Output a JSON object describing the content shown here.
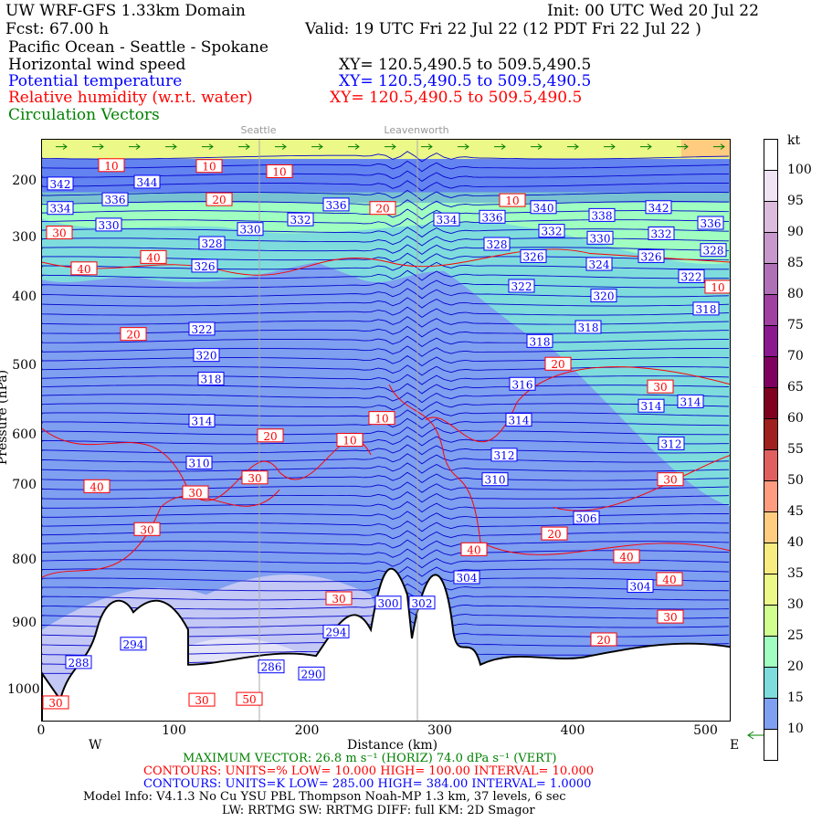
{
  "header": {
    "title": "UW WRF-GFS 1.33km Domain",
    "init": "Init: 00 UTC Wed 20 Jul 22",
    "fcst": "Fcst:   67.00 h",
    "valid": "Valid: 19 UTC Fri 22 Jul 22   (12 PDT Fri 22 Jul 22  )",
    "region": "Pacific Ocean - Seattle - Spokane",
    "fields": [
      {
        "label": "Horizontal wind speed",
        "xy": "XY= 120.5,490.5 to 509.5,490.5",
        "color": "#000000"
      },
      {
        "label": "Potential temperature",
        "xy": "XY= 120.5,490.5 to 509.5,490.5",
        "color": "#0000ff"
      },
      {
        "label": "Relative humidity (w.r.t. water)",
        "xy": "XY= 120.5,490.5 to 509.5,490.5",
        "color": "#ff0000"
      },
      {
        "label": "Circulation Vectors",
        "xy": "",
        "color": "#008000"
      }
    ]
  },
  "chart_data": {
    "type": "heatmap",
    "xlabel": "Distance (km)",
    "ylabel": "Pressure (hPa)",
    "x_ticks": [
      "0",
      "100",
      "200",
      "300",
      "400",
      "500"
    ],
    "y_ticks": [
      "200",
      "300",
      "400",
      "500",
      "600",
      "700",
      "800",
      "900",
      "1000"
    ],
    "xlim": [
      0,
      520
    ],
    "ylim": [
      1050,
      150
    ],
    "orientation_labels": {
      "left": "W",
      "right": "E"
    },
    "locations": [
      {
        "name": "Seattle",
        "x_km": 164
      },
      {
        "name": "Leavenworth",
        "x_km": 283
      }
    ],
    "colorbar": {
      "unit": "kt",
      "levels": [
        "10",
        "15",
        "20",
        "25",
        "30",
        "35",
        "40",
        "45",
        "50",
        "55",
        "60",
        "65",
        "70",
        "75",
        "80",
        "85",
        "90",
        "95",
        "100"
      ],
      "colors": [
        "#ffffff",
        "#7f9ff0",
        "#7fdcdc",
        "#a0ffc0",
        "#d0ff90",
        "#ecf888",
        "#f8ec80",
        "#ffcc80",
        "#ff9c80",
        "#e06060",
        "#a02020",
        "#800020",
        "#800060",
        "#8c1890",
        "#a040a0",
        "#b070b8",
        "#c898cc",
        "#dcbcdc",
        "#f0e4f4",
        "#ffffff"
      ]
    },
    "theta_labels": [
      342,
      344,
      334,
      336,
      330,
      328,
      330,
      332,
      336,
      334,
      336,
      340,
      338,
      342,
      336,
      332,
      330,
      332,
      328,
      326,
      324,
      326,
      328,
      326,
      322,
      320,
      322,
      318,
      322,
      320,
      318,
      318,
      318,
      316,
      314,
      314,
      314,
      314,
      312,
      312,
      310,
      310,
      306,
      304,
      304,
      300,
      302,
      286,
      290,
      288,
      294,
      294
    ],
    "rh_labels": [
      10,
      10,
      10,
      20,
      20,
      10,
      40,
      40,
      20,
      20,
      30,
      10,
      10,
      20,
      40,
      30,
      30,
      30,
      20,
      30,
      40,
      40,
      40,
      30,
      20,
      30,
      30,
      30,
      50,
      30,
      10
    ]
  },
  "footer": {
    "max_vector": "MAXIMUM VECTOR: 26.8 m s⁻¹ (HORIZ)   74.0 dPa s⁻¹ (VERT)",
    "rh_contours": "CONTOURS:  UNITS=%  LOW=  10.000      HIGH=  100.00      INTERVAL=    10.000",
    "theta_contours": "CONTOURS:  UNITS=K  LOW=  285.00      HIGH=  384.00      INTERVAL=    1.0000",
    "model_info": "Model Info: V4.1.3    No Cu    YSU PBL   Thompson     Noah-MP    1.3 km,   37 levels,     6 sec",
    "model_info2": "LW: RRTMG SW: RRTMG    DIFF: full    KM: 2D Smagor"
  }
}
